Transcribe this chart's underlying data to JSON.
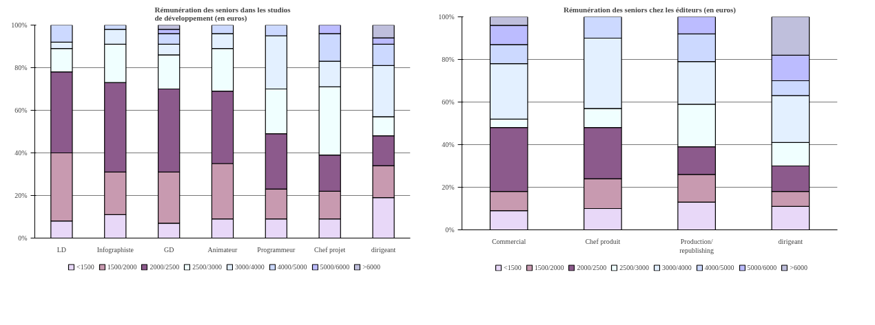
{
  "chart_data": [
    {
      "type": "bar",
      "stacked": true,
      "title": "Rémunération des seniors dans les studios\nde développement (en euros)",
      "categories": [
        "LD",
        "Infographiste",
        "GD",
        "Animateur",
        "Programmeur",
        "Chef projet",
        "dirigeant"
      ],
      "ylim": [
        0,
        100
      ],
      "yticks": [
        {
          "value": 0,
          "label": "0%"
        },
        {
          "value": 20,
          "label": "20%"
        },
        {
          "value": 40,
          "label": "40%"
        },
        {
          "value": 60,
          "label": "60%"
        },
        {
          "value": 80,
          "label": "80%"
        },
        {
          "value": 100,
          "label": "100%"
        }
      ],
      "grid": "y",
      "legend": "bottom",
      "series": [
        {
          "name": "<1500",
          "color": "#e8d8f8",
          "values": [
            8,
            11,
            7,
            9,
            9,
            9,
            19
          ]
        },
        {
          "name": "1500/2000",
          "color": "#c89ab0",
          "values": [
            32,
            20,
            24,
            26,
            14,
            13,
            15
          ]
        },
        {
          "name": "2000/2500",
          "color": "#8c5a8c",
          "values": [
            38,
            42,
            39,
            34,
            26,
            17,
            14
          ]
        },
        {
          "name": "2500/3000",
          "color": "#f0ffff",
          "values": [
            11,
            18,
            16,
            20,
            21,
            32,
            9
          ]
        },
        {
          "name": "3000/4000",
          "color": "#e3f0ff",
          "values": [
            3,
            7,
            5,
            7,
            25,
            12,
            24
          ]
        },
        {
          "name": "4000/5000",
          "color": "#ccd9ff",
          "values": [
            8,
            2,
            5,
            4,
            5,
            13,
            10
          ]
        },
        {
          "name": "5000/6000",
          "color": "#bcbcff",
          "values": [
            0,
            0,
            2,
            0,
            0,
            4,
            3
          ]
        },
        {
          "name": ">6000",
          "color": "#bfbfdc",
          "values": [
            0,
            0,
            2,
            0,
            0,
            0,
            6
          ]
        }
      ]
    },
    {
      "type": "bar",
      "stacked": true,
      "title": "Rémunération des seniors chez les éditeurs (en euros)",
      "categories": [
        "Commercial",
        "Chef produit",
        "Production/\nrepublishing",
        "dirigeant"
      ],
      "ylim": [
        0,
        100
      ],
      "yticks": [
        {
          "value": 0,
          "label": "0%"
        },
        {
          "value": 20,
          "label": "20%"
        },
        {
          "value": 40,
          "label": "40%"
        },
        {
          "value": 60,
          "label": "60%"
        },
        {
          "value": 80,
          "label": "80%"
        },
        {
          "value": 100,
          "label": "100%"
        }
      ],
      "grid": "y",
      "legend": "bottom",
      "series": [
        {
          "name": "<1500",
          "color": "#e8d8f8",
          "values": [
            9,
            10,
            13,
            11
          ]
        },
        {
          "name": "1500/2000",
          "color": "#c89ab0",
          "values": [
            9,
            14,
            13,
            7
          ]
        },
        {
          "name": "2000/2500",
          "color": "#8c5a8c",
          "values": [
            30,
            24,
            13,
            12
          ]
        },
        {
          "name": "2500/3000",
          "color": "#f0ffff",
          "values": [
            4,
            9,
            20,
            11
          ]
        },
        {
          "name": "3000/4000",
          "color": "#e3f0ff",
          "values": [
            26,
            33,
            20,
            22
          ]
        },
        {
          "name": "4000/5000",
          "color": "#ccd9ff",
          "values": [
            9,
            10,
            13,
            7
          ]
        },
        {
          "name": "5000/6000",
          "color": "#bcbcff",
          "values": [
            9,
            0,
            8,
            12
          ]
        },
        {
          "name": ">6000",
          "color": "#bfbfdc",
          "values": [
            4,
            0,
            0,
            18
          ]
        }
      ]
    }
  ]
}
